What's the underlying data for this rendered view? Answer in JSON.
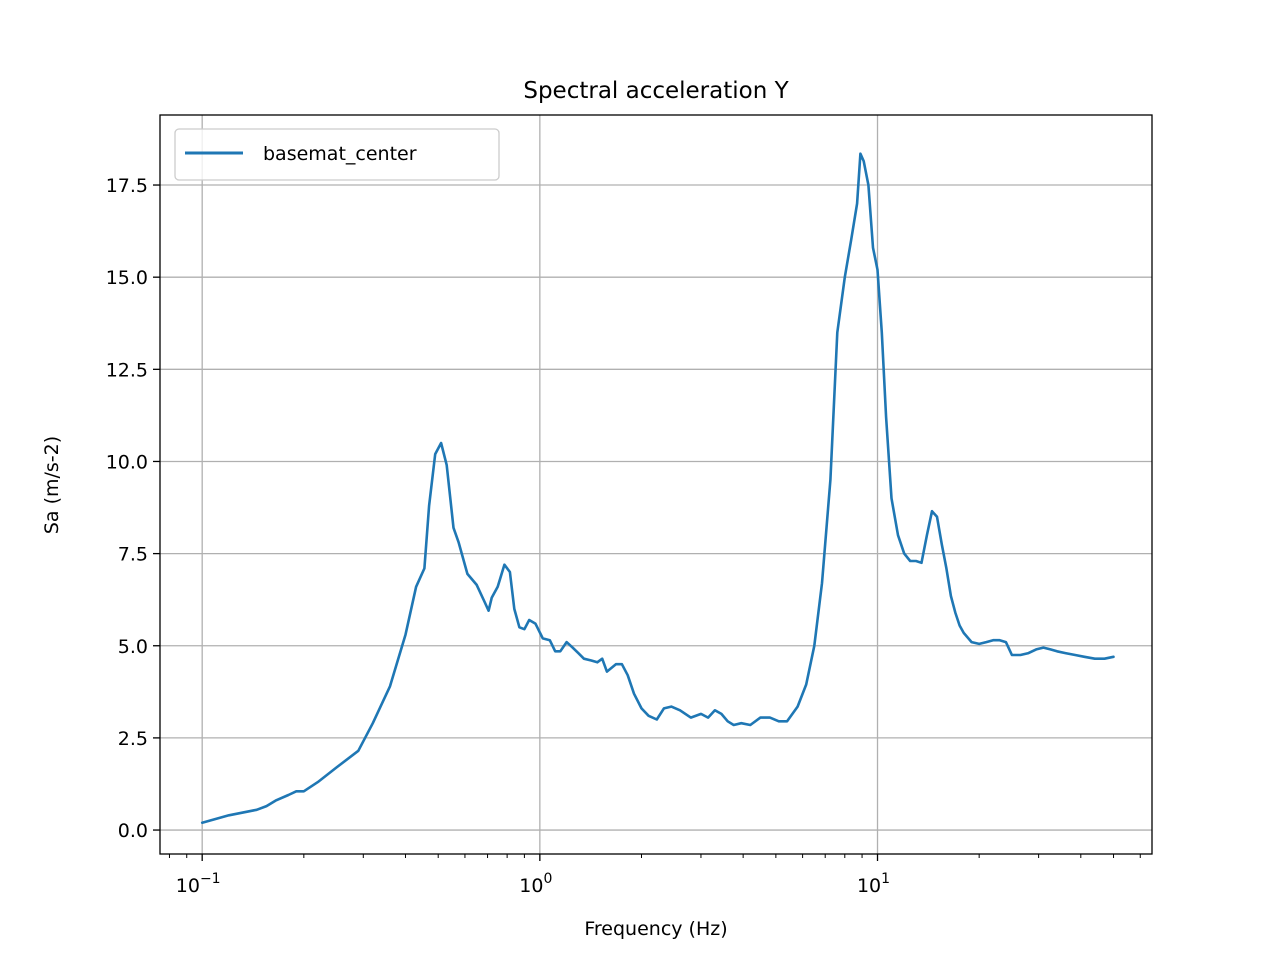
{
  "chart_data": {
    "type": "line",
    "title": "Spectral acceleration Y",
    "xlabel": "Frequency (Hz)",
    "ylabel": "Sa (m/s-2)",
    "xscale": "log",
    "xlim": [
      0.075,
      65
    ],
    "ylim": [
      -0.65,
      19.4
    ],
    "grid": true,
    "legend_position": "top-left",
    "xticks": [
      {
        "value": 0.1,
        "base": "10",
        "exp": "−1"
      },
      {
        "value": 1,
        "base": "10",
        "exp": "0"
      },
      {
        "value": 10,
        "base": "10",
        "exp": "1"
      }
    ],
    "yticks": [
      {
        "value": 0.0,
        "label": "0.0"
      },
      {
        "value": 2.5,
        "label": "2.5"
      },
      {
        "value": 5.0,
        "label": "5.0"
      },
      {
        "value": 7.5,
        "label": "7.5"
      },
      {
        "value": 10.0,
        "label": "10.0"
      },
      {
        "value": 12.5,
        "label": "12.5"
      },
      {
        "value": 15.0,
        "label": "15.0"
      },
      {
        "value": 17.5,
        "label": "17.5"
      }
    ],
    "series": [
      {
        "name": "basemat_center",
        "color": "#1f77b4",
        "x": [
          0.1,
          0.12,
          0.145,
          0.155,
          0.165,
          0.18,
          0.19,
          0.2,
          0.22,
          0.25,
          0.29,
          0.32,
          0.36,
          0.4,
          0.43,
          0.455,
          0.47,
          0.49,
          0.51,
          0.53,
          0.555,
          0.575,
          0.61,
          0.65,
          0.685,
          0.705,
          0.72,
          0.75,
          0.785,
          0.815,
          0.84,
          0.87,
          0.9,
          0.93,
          0.97,
          1.02,
          1.07,
          1.11,
          1.15,
          1.2,
          1.25,
          1.3,
          1.35,
          1.42,
          1.48,
          1.53,
          1.58,
          1.63,
          1.68,
          1.75,
          1.82,
          1.9,
          2.0,
          2.1,
          2.22,
          2.33,
          2.45,
          2.6,
          2.8,
          3.0,
          3.15,
          3.3,
          3.45,
          3.6,
          3.75,
          3.95,
          4.2,
          4.5,
          4.8,
          5.1,
          5.4,
          5.8,
          6.15,
          6.5,
          6.85,
          7.25,
          7.6,
          8.0,
          8.35,
          8.7,
          8.9,
          9.1,
          9.4,
          9.7,
          10.0,
          10.3,
          10.6,
          11.0,
          11.5,
          12.0,
          12.5,
          13.0,
          13.5,
          14.0,
          14.5,
          15.0,
          15.5,
          16.0,
          16.5,
          17.0,
          17.5,
          18.0,
          19.0,
          20.0,
          21.0,
          22.0,
          23.0,
          24.0,
          25.0,
          26.5,
          28.0,
          29.5,
          31.0,
          32.5,
          34.0,
          36.0,
          38.5,
          41.0,
          44.0,
          47.0,
          50.0
        ],
        "y": [
          0.2,
          0.4,
          0.55,
          0.65,
          0.8,
          0.95,
          1.05,
          1.05,
          1.3,
          1.7,
          2.15,
          2.9,
          3.9,
          5.3,
          6.6,
          7.1,
          8.8,
          10.2,
          10.5,
          9.9,
          8.2,
          7.8,
          6.95,
          6.65,
          6.2,
          5.95,
          6.3,
          6.6,
          7.2,
          7.0,
          6.0,
          5.5,
          5.45,
          5.7,
          5.6,
          5.2,
          5.15,
          4.85,
          4.85,
          5.1,
          4.95,
          4.8,
          4.65,
          4.6,
          4.55,
          4.65,
          4.3,
          4.4,
          4.5,
          4.5,
          4.2,
          3.7,
          3.3,
          3.1,
          3.0,
          3.3,
          3.35,
          3.25,
          3.05,
          3.15,
          3.05,
          3.25,
          3.15,
          2.95,
          2.85,
          2.9,
          2.85,
          3.05,
          3.05,
          2.95,
          2.95,
          3.35,
          3.95,
          5.0,
          6.7,
          9.5,
          13.5,
          15.0,
          16.0,
          17.0,
          18.35,
          18.15,
          17.5,
          15.8,
          15.2,
          13.5,
          11.2,
          9.0,
          8.0,
          7.5,
          7.3,
          7.3,
          7.25,
          8.0,
          8.65,
          8.5,
          7.75,
          7.1,
          6.35,
          5.9,
          5.55,
          5.35,
          5.1,
          5.05,
          5.1,
          5.15,
          5.15,
          5.1,
          4.75,
          4.75,
          4.8,
          4.9,
          4.95,
          4.9,
          4.85,
          4.8,
          4.75,
          4.7,
          4.65,
          4.65,
          4.7
        ]
      }
    ]
  }
}
